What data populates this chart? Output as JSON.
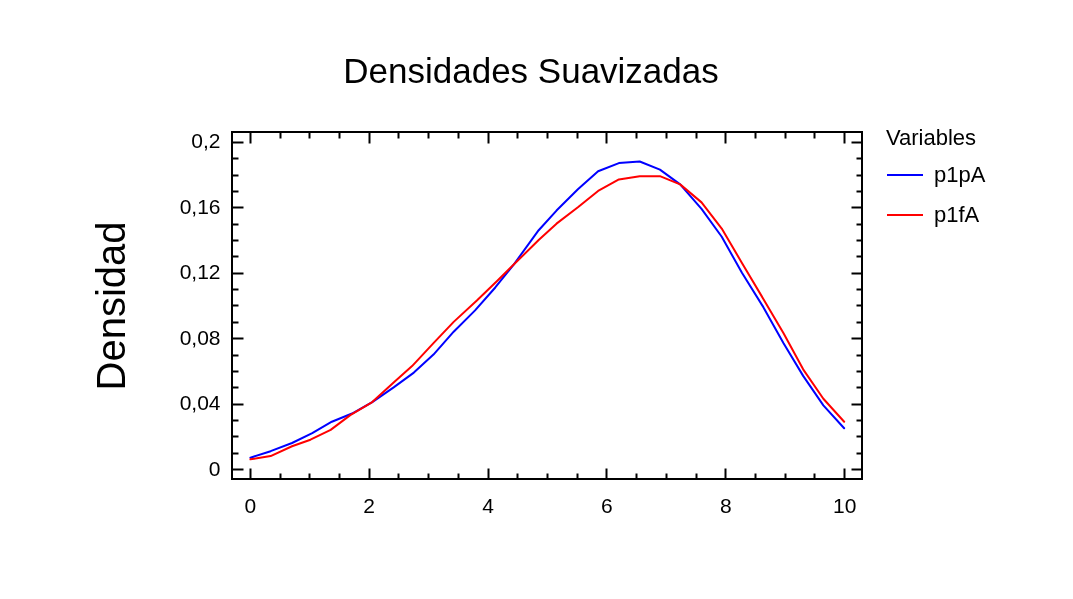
{
  "chart_data": {
    "type": "line",
    "title": "Densidades Suavizadas",
    "ylabel": "Densidad",
    "legend_title": "Variables",
    "legend": "top right",
    "grid": false,
    "xlim": [
      -0.3,
      10.3
    ],
    "xticks": [
      0,
      {
        "value": 0.5,
        "label": null
      },
      {
        "value": 1,
        "label": null
      },
      {
        "value": 1.5,
        "label": null
      },
      2,
      {
        "value": 2.5,
        "label": null
      },
      {
        "value": 3,
        "label": null
      },
      {
        "value": 3.5,
        "label": null
      },
      4,
      {
        "value": 4.5,
        "label": null
      },
      {
        "value": 5,
        "label": null
      },
      {
        "value": 5.5,
        "label": null
      },
      6,
      {
        "value": 6.5,
        "label": null
      },
      {
        "value": 7,
        "label": null
      },
      {
        "value": 7.5,
        "label": null
      },
      8,
      {
        "value": 8.5,
        "label": null
      },
      {
        "value": 9,
        "label": null
      },
      {
        "value": 9.5,
        "label": null
      },
      10
    ],
    "ylim": [
      -0.006,
      0.206
    ],
    "yticks": [
      0,
      {
        "value": 0.01,
        "label": null
      },
      {
        "value": 0.02,
        "label": null
      },
      {
        "value": 0.03,
        "label": null
      },
      {
        "value": 0.04,
        "label": "0,04"
      },
      {
        "value": 0.05,
        "label": null
      },
      {
        "value": 0.06,
        "label": null
      },
      {
        "value": 0.07,
        "label": null
      },
      {
        "value": 0.08,
        "label": "0,08"
      },
      {
        "value": 0.09,
        "label": null
      },
      {
        "value": 0.1,
        "label": null
      },
      {
        "value": 0.11,
        "label": null
      },
      {
        "value": 0.12,
        "label": "0,12"
      },
      {
        "value": 0.13,
        "label": null
      },
      {
        "value": 0.14,
        "label": null
      },
      {
        "value": 0.15,
        "label": null
      },
      {
        "value": 0.16,
        "label": "0,16"
      },
      {
        "value": 0.17,
        "label": null
      },
      {
        "value": 0.18,
        "label": null
      },
      {
        "value": 0.19,
        "label": null
      },
      {
        "value": 0.2,
        "label": "0,2"
      }
    ],
    "series": [
      {
        "name": "p1pA",
        "color": "#0000ff",
        "x": [
          0.01,
          0.35,
          0.71,
          1.05,
          1.38,
          1.72,
          2.06,
          2.42,
          2.76,
          3.09,
          3.43,
          3.79,
          4.13,
          4.44,
          4.86,
          5.16,
          5.52,
          5.86,
          6.21,
          6.56,
          6.9,
          7.24,
          7.6,
          7.94,
          8.28,
          8.64,
          8.98,
          9.31,
          9.65,
          10.0
        ],
        "values": [
          0.007,
          0.011,
          0.016,
          0.022,
          0.029,
          0.034,
          0.041,
          0.05,
          0.059,
          0.07,
          0.084,
          0.097,
          0.111,
          0.125,
          0.146,
          0.158,
          0.171,
          0.182,
          0.187,
          0.188,
          0.183,
          0.174,
          0.159,
          0.142,
          0.12,
          0.099,
          0.077,
          0.057,
          0.039,
          0.025
        ]
      },
      {
        "name": "p1fA",
        "color": "#ff0000",
        "x": [
          0.01,
          0.35,
          0.71,
          1.02,
          1.36,
          1.69,
          2.06,
          2.42,
          2.73,
          3.09,
          3.43,
          3.82,
          4.16,
          4.44,
          4.86,
          5.16,
          5.52,
          5.86,
          6.21,
          6.56,
          6.9,
          7.24,
          7.6,
          7.94,
          8.28,
          8.64,
          8.98,
          9.31,
          9.65,
          10.0
        ],
        "values": [
          0.006,
          0.008,
          0.014,
          0.018,
          0.024,
          0.033,
          0.041,
          0.053,
          0.063,
          0.077,
          0.09,
          0.103,
          0.115,
          0.125,
          0.14,
          0.15,
          0.16,
          0.17,
          0.177,
          0.179,
          0.179,
          0.174,
          0.163,
          0.147,
          0.126,
          0.104,
          0.083,
          0.061,
          0.043,
          0.029
        ]
      }
    ]
  }
}
